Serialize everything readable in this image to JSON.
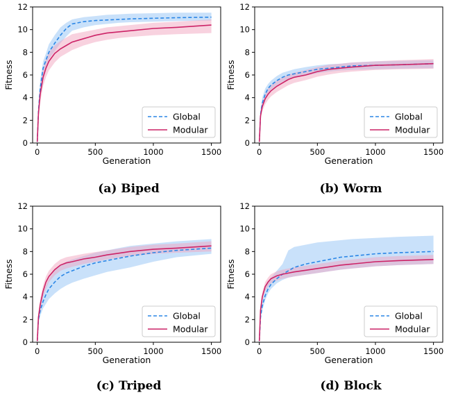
{
  "colors": {
    "global": "#2a86e6",
    "modular": "#cc2266",
    "global_band": "#9cc8f5",
    "modular_band": "#f2a6bf"
  },
  "chart_data": [
    {
      "type": "line",
      "caption": "(a) Biped",
      "xlabel": "Generation",
      "ylabel": "Fitness",
      "xlim": [
        -40,
        1580
      ],
      "ylim": [
        0,
        12
      ],
      "xticks": [
        "0",
        "500",
        "1000",
        "1500"
      ],
      "yticks": [
        "0",
        "2",
        "4",
        "6",
        "8",
        "10",
        "12"
      ],
      "legend_position": "lower right",
      "x": [
        0,
        10,
        25,
        50,
        75,
        100,
        150,
        200,
        250,
        300,
        400,
        500,
        600,
        700,
        800,
        1000,
        1200,
        1500
      ],
      "series": [
        {
          "name": "Global",
          "style": "dashed",
          "values": [
            0.1,
            2.8,
            4.8,
            6.6,
            7.3,
            8.0,
            8.8,
            9.5,
            10.1,
            10.5,
            10.7,
            10.8,
            10.85,
            10.9,
            10.95,
            11.0,
            11.05,
            11.1
          ],
          "lower": [
            0.0,
            2.3,
            4.2,
            5.9,
            6.8,
            7.4,
            8.1,
            8.8,
            9.4,
            9.9,
            10.2,
            10.4,
            10.5,
            10.6,
            10.65,
            10.7,
            10.75,
            10.8
          ],
          "upper": [
            0.2,
            3.4,
            5.5,
            7.2,
            7.9,
            8.7,
            9.5,
            10.2,
            10.6,
            10.9,
            11.1,
            11.2,
            11.3,
            11.35,
            11.4,
            11.45,
            11.5,
            11.5
          ]
        },
        {
          "name": "Modular",
          "style": "solid",
          "values": [
            0.1,
            2.6,
            4.3,
            5.8,
            6.6,
            7.2,
            7.9,
            8.3,
            8.6,
            8.9,
            9.2,
            9.5,
            9.7,
            9.8,
            9.9,
            10.1,
            10.2,
            10.4
          ],
          "lower": [
            0.0,
            2.1,
            3.6,
            5.0,
            5.8,
            6.4,
            7.1,
            7.6,
            7.9,
            8.2,
            8.6,
            8.9,
            9.1,
            9.25,
            9.35,
            9.5,
            9.6,
            9.7
          ],
          "upper": [
            0.2,
            3.1,
            5.0,
            6.5,
            7.4,
            8.0,
            8.6,
            9.0,
            9.3,
            9.6,
            9.8,
            10.0,
            10.2,
            10.3,
            10.4,
            10.6,
            10.7,
            10.9
          ]
        }
      ]
    },
    {
      "type": "line",
      "caption": "(b) Worm",
      "xlabel": "Generation",
      "ylabel": "Fitness",
      "xlim": [
        -40,
        1580
      ],
      "ylim": [
        0,
        12
      ],
      "xticks": [
        "0",
        "500",
        "1000",
        "1500"
      ],
      "yticks": [
        "0",
        "2",
        "4",
        "6",
        "8",
        "10",
        "12"
      ],
      "legend_position": "lower right",
      "x": [
        0,
        10,
        25,
        50,
        75,
        100,
        150,
        200,
        250,
        300,
        400,
        500,
        600,
        700,
        800,
        1000,
        1200,
        1500
      ],
      "series": [
        {
          "name": "Global",
          "style": "dashed",
          "values": [
            0.1,
            2.5,
            3.5,
            4.3,
            4.8,
            5.1,
            5.5,
            5.8,
            6.0,
            6.1,
            6.3,
            6.5,
            6.6,
            6.7,
            6.8,
            6.85,
            6.9,
            7.0
          ],
          "lower": [
            0.0,
            2.2,
            3.1,
            3.9,
            4.4,
            4.7,
            5.1,
            5.4,
            5.6,
            5.75,
            5.95,
            6.15,
            6.3,
            6.4,
            6.45,
            6.5,
            6.55,
            6.6
          ],
          "upper": [
            0.2,
            2.9,
            4.0,
            4.8,
            5.2,
            5.5,
            5.9,
            6.2,
            6.35,
            6.5,
            6.7,
            6.85,
            6.95,
            7.0,
            7.1,
            7.2,
            7.25,
            7.3
          ]
        },
        {
          "name": "Modular",
          "style": "solid",
          "values": [
            0.1,
            2.4,
            3.2,
            3.9,
            4.3,
            4.6,
            5.0,
            5.3,
            5.6,
            5.8,
            6.0,
            6.3,
            6.5,
            6.6,
            6.7,
            6.85,
            6.9,
            7.0
          ],
          "lower": [
            0.0,
            2.0,
            2.8,
            3.4,
            3.8,
            4.1,
            4.5,
            4.8,
            5.1,
            5.3,
            5.55,
            5.85,
            6.05,
            6.2,
            6.3,
            6.45,
            6.5,
            6.55
          ],
          "upper": [
            0.2,
            2.8,
            3.6,
            4.3,
            4.8,
            5.1,
            5.5,
            5.8,
            6.0,
            6.2,
            6.45,
            6.7,
            6.9,
            7.0,
            7.1,
            7.2,
            7.3,
            7.4
          ]
        }
      ]
    },
    {
      "type": "line",
      "caption": "(c) Triped",
      "xlabel": "Generation",
      "ylabel": "Fitness",
      "xlim": [
        -40,
        1580
      ],
      "ylim": [
        0,
        12
      ],
      "xticks": [
        "0",
        "500",
        "1000",
        "1500"
      ],
      "yticks": [
        "0",
        "2",
        "4",
        "6",
        "8",
        "10",
        "12"
      ],
      "legend_position": "lower right",
      "x": [
        0,
        10,
        25,
        50,
        75,
        100,
        150,
        200,
        250,
        300,
        400,
        500,
        600,
        700,
        800,
        1000,
        1200,
        1500
      ],
      "series": [
        {
          "name": "Global",
          "style": "dashed",
          "values": [
            0.1,
            2.0,
            2.8,
            3.6,
            4.2,
            4.7,
            5.3,
            5.8,
            6.1,
            6.3,
            6.7,
            7.0,
            7.2,
            7.4,
            7.6,
            7.9,
            8.1,
            8.3
          ],
          "lower": [
            0.0,
            1.7,
            2.3,
            3.0,
            3.4,
            3.8,
            4.3,
            4.7,
            5.0,
            5.25,
            5.6,
            5.9,
            6.2,
            6.4,
            6.6,
            7.1,
            7.5,
            7.8
          ],
          "upper": [
            0.2,
            2.4,
            3.3,
            4.3,
            5.0,
            5.6,
            6.3,
            6.8,
            7.1,
            7.3,
            7.6,
            7.9,
            8.1,
            8.3,
            8.5,
            8.7,
            8.9,
            9.1
          ]
        },
        {
          "name": "Modular",
          "style": "solid",
          "values": [
            0.1,
            2.2,
            3.3,
            4.5,
            5.3,
            5.8,
            6.4,
            6.8,
            7.0,
            7.1,
            7.35,
            7.5,
            7.7,
            7.85,
            8.0,
            8.2,
            8.3,
            8.5
          ],
          "lower": [
            0.0,
            1.9,
            2.9,
            4.0,
            4.7,
            5.3,
            5.9,
            6.3,
            6.5,
            6.65,
            6.9,
            7.1,
            7.3,
            7.45,
            7.6,
            7.8,
            7.9,
            8.0
          ],
          "upper": [
            0.2,
            2.6,
            3.8,
            5.0,
            5.8,
            6.3,
            6.9,
            7.3,
            7.5,
            7.6,
            7.8,
            7.95,
            8.1,
            8.25,
            8.4,
            8.6,
            8.7,
            8.9
          ]
        }
      ]
    },
    {
      "type": "line",
      "caption": "(d) Block",
      "xlabel": "Generation",
      "ylabel": "Fitness",
      "xlim": [
        -40,
        1580
      ],
      "ylim": [
        0,
        12
      ],
      "xticks": [
        "0",
        "500",
        "1000",
        "1500"
      ],
      "yticks": [
        "0",
        "2",
        "4",
        "6",
        "8",
        "10",
        "12"
      ],
      "legend_position": "lower right",
      "x": [
        0,
        10,
        25,
        50,
        75,
        100,
        150,
        200,
        250,
        300,
        400,
        500,
        600,
        700,
        800,
        1000,
        1200,
        1500
      ],
      "series": [
        {
          "name": "Global",
          "style": "dashed",
          "values": [
            0.1,
            2.2,
            3.2,
            4.1,
            4.7,
            5.1,
            5.6,
            6.0,
            6.3,
            6.6,
            6.9,
            7.1,
            7.3,
            7.5,
            7.6,
            7.8,
            7.9,
            8.0
          ],
          "lower": [
            0.0,
            1.9,
            2.8,
            3.7,
            4.3,
            4.7,
            5.2,
            5.5,
            5.7,
            5.8,
            5.95,
            6.1,
            6.25,
            6.4,
            6.5,
            6.7,
            6.8,
            6.9
          ],
          "upper": [
            0.2,
            2.6,
            3.7,
            4.7,
            5.3,
            5.7,
            6.3,
            6.9,
            8.1,
            8.4,
            8.6,
            8.8,
            8.9,
            9.0,
            9.1,
            9.2,
            9.3,
            9.4
          ]
        },
        {
          "name": "Modular",
          "style": "solid",
          "values": [
            0.1,
            2.8,
            4.0,
            4.9,
            5.3,
            5.6,
            5.85,
            6.0,
            6.1,
            6.2,
            6.35,
            6.5,
            6.65,
            6.8,
            6.9,
            7.1,
            7.2,
            7.3
          ],
          "lower": [
            0.0,
            2.4,
            3.6,
            4.5,
            4.9,
            5.2,
            5.45,
            5.6,
            5.7,
            5.8,
            5.95,
            6.1,
            6.25,
            6.4,
            6.5,
            6.7,
            6.8,
            6.9
          ],
          "upper": [
            0.2,
            3.2,
            4.4,
            5.3,
            5.7,
            6.0,
            6.25,
            6.4,
            6.5,
            6.6,
            6.75,
            6.9,
            7.05,
            7.2,
            7.3,
            7.5,
            7.6,
            7.7
          ]
        }
      ]
    }
  ]
}
